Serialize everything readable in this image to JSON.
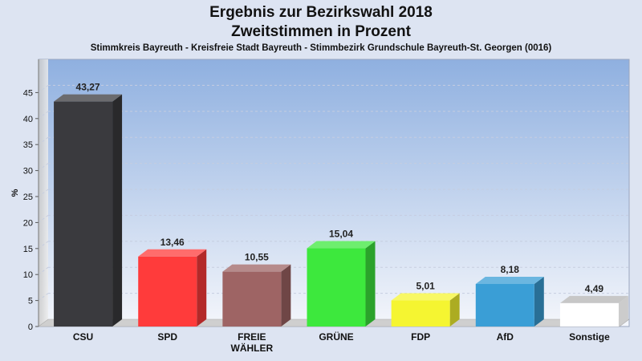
{
  "header": {
    "title_line1": "Ergebnis zur Bezirkswahl 2018",
    "title_line2": "Zweitstimmen in Prozent",
    "subtitle": "Stimmkreis Bayreuth - Kreisfreie Stadt Bayreuth - Stimmbezirk Grundschule Bayreuth-St. Georgen (0016)"
  },
  "chart_data": {
    "type": "bar",
    "title": "Ergebnis zur Bezirkswahl 2018",
    "subtitle": "Zweitstimmen in Prozent",
    "ylabel": "%",
    "xlabel": "",
    "ylim": [
      0,
      50
    ],
    "yticks": [
      0,
      5,
      10,
      15,
      20,
      25,
      30,
      35,
      40,
      45
    ],
    "categories": [
      "CSU",
      "SPD",
      "FREIE WÄHLER",
      "GRÜNE",
      "FDP",
      "AfD",
      "Sonstige"
    ],
    "category_lines": [
      [
        "CSU"
      ],
      [
        "SPD"
      ],
      [
        "FREIE",
        "WÄHLER"
      ],
      [
        "GRÜNE"
      ],
      [
        "FDP"
      ],
      [
        "AfD"
      ],
      [
        "Sonstige"
      ]
    ],
    "values": [
      43.27,
      13.46,
      10.55,
      15.04,
      5.01,
      8.18,
      4.49
    ],
    "value_labels": [
      "43,27",
      "13,46",
      "10,55",
      "15,04",
      "5,01",
      "8,18",
      "4,49"
    ],
    "colors": [
      "#3a3a3e",
      "#ff3b3b",
      "#9e6464",
      "#3de83d",
      "#f5f531",
      "#3a9ed6",
      "#ffffff"
    ],
    "grid": true,
    "legend": "none"
  }
}
